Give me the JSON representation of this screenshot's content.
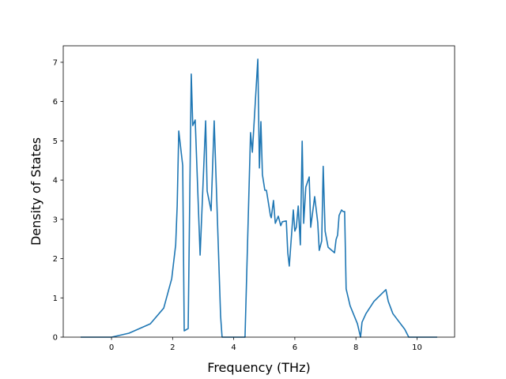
{
  "chart_data": {
    "type": "line",
    "title": "",
    "xlabel": "Frequency (THz)",
    "ylabel": "Density of States",
    "xlim": [
      -1.58,
      11.23
    ],
    "ylim": [
      0,
      7.42
    ],
    "xticks": [
      0,
      2,
      4,
      6,
      8,
      10
    ],
    "yticks": [
      0,
      1,
      2,
      3,
      4,
      5,
      6,
      7
    ],
    "grid": false,
    "color": "#1f77b4",
    "series": [
      {
        "x": [
          -1.01,
          0,
          0.57,
          1.27,
          1.71,
          1.97,
          2.1,
          2.15,
          2.2,
          2.33,
          2.38,
          2.51,
          2.61,
          2.66,
          2.74,
          2.9,
          3.08,
          3.13,
          3.26,
          3.36,
          3.57,
          3.62,
          4.37,
          4.55,
          4.61,
          4.79,
          4.84,
          4.89,
          4.94,
          5.02,
          5.07,
          5.2,
          5.23,
          5.3,
          5.36,
          5.46,
          5.54,
          5.59,
          5.72,
          5.77,
          5.82,
          5.95,
          6.0,
          6.05,
          6.11,
          6.18,
          6.24,
          6.29,
          6.36,
          6.47,
          6.52,
          6.65,
          6.75,
          6.8,
          6.88,
          6.93,
          6.99,
          7.09,
          7.3,
          7.35,
          7.4,
          7.45,
          7.53,
          7.58,
          7.63,
          7.68,
          7.81,
          8.05,
          8.15,
          8.2,
          8.33,
          8.59,
          8.98,
          9.06,
          9.21,
          9.6,
          9.73,
          10.66
        ],
        "y": [
          0,
          0,
          0.1,
          0.34,
          0.74,
          1.49,
          2.35,
          3.34,
          5.25,
          4.37,
          0.16,
          0.22,
          6.7,
          5.39,
          5.53,
          2.09,
          5.51,
          3.72,
          3.22,
          5.51,
          0.54,
          0,
          0,
          5.21,
          4.71,
          7.08,
          4.31,
          5.49,
          4.14,
          3.74,
          3.74,
          3.1,
          3.04,
          3.48,
          2.9,
          3.08,
          2.84,
          2.94,
          2.96,
          2.15,
          1.81,
          3.24,
          2.7,
          2.8,
          3.34,
          2.35,
          4.99,
          2.9,
          3.82,
          4.08,
          2.8,
          3.58,
          2.92,
          2.21,
          2.45,
          4.35,
          2.7,
          2.29,
          2.15,
          2.49,
          2.6,
          3.1,
          3.24,
          3.2,
          3.2,
          1.23,
          0.8,
          0.34,
          0,
          0.38,
          0.6,
          0.91,
          1.21,
          0.91,
          0.6,
          0.2,
          0,
          0
        ]
      }
    ]
  }
}
